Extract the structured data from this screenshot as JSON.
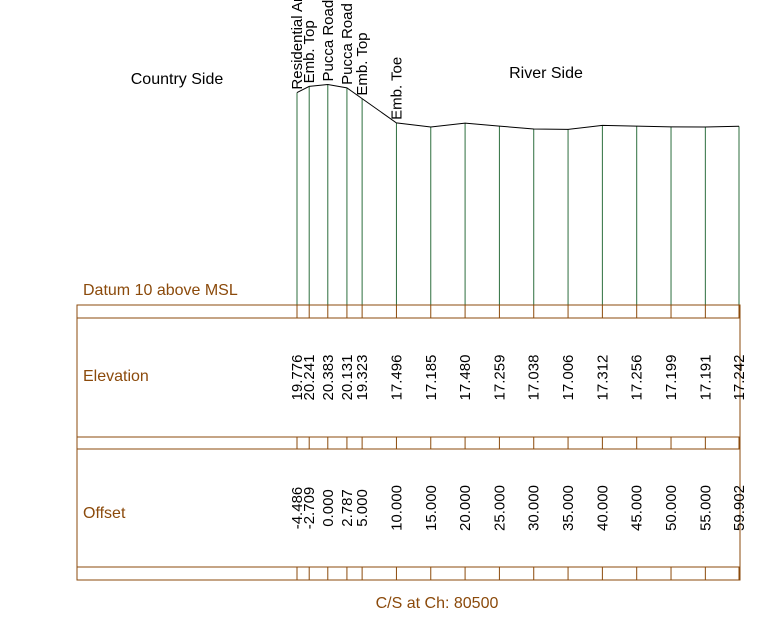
{
  "title": "C/S at Ch: 80500",
  "country_side_label": "Country Side",
  "river_side_label": "River Side",
  "datum_label": "Datum 10 above MSL",
  "datum_value": 10,
  "elevation_row_label": "Elevation",
  "offset_row_label": "Offset",
  "colors": {
    "label_brown": "#8b4a0b",
    "frame_brown": "#8b4a0b",
    "station_green": "#2d6e3e",
    "profile_line": "#000000",
    "text": "#000000"
  },
  "chart_data": {
    "type": "line",
    "title": "C/S at Ch: 80500",
    "xlabel": "Offset",
    "ylabel": "Elevation",
    "datum": 10,
    "points": [
      {
        "offset": "-4.486",
        "elevation": "19.776",
        "feature": "Residential Area"
      },
      {
        "offset": "-2.709",
        "elevation": "20.241",
        "feature": "Emb. Top"
      },
      {
        "offset": "0.000",
        "elevation": "20.383",
        "feature": "Pucca Road"
      },
      {
        "offset": "2.787",
        "elevation": "20.131",
        "feature": "Pucca Road"
      },
      {
        "offset": "5.000",
        "elevation": "19.323",
        "feature": "Emb. Top"
      },
      {
        "offset": "10.000",
        "elevation": "17.496",
        "feature": "Emb. Toe"
      },
      {
        "offset": "15.000",
        "elevation": "17.185",
        "feature": ""
      },
      {
        "offset": "20.000",
        "elevation": "17.480",
        "feature": ""
      },
      {
        "offset": "25.000",
        "elevation": "17.259",
        "feature": ""
      },
      {
        "offset": "30.000",
        "elevation": "17.038",
        "feature": ""
      },
      {
        "offset": "35.000",
        "elevation": "17.006",
        "feature": ""
      },
      {
        "offset": "40.000",
        "elevation": "17.312",
        "feature": ""
      },
      {
        "offset": "45.000",
        "elevation": "17.256",
        "feature": ""
      },
      {
        "offset": "50.000",
        "elevation": "17.199",
        "feature": ""
      },
      {
        "offset": "55.000",
        "elevation": "17.191",
        "feature": ""
      },
      {
        "offset": "59.902",
        "elevation": "17.242",
        "feature": ""
      }
    ]
  }
}
